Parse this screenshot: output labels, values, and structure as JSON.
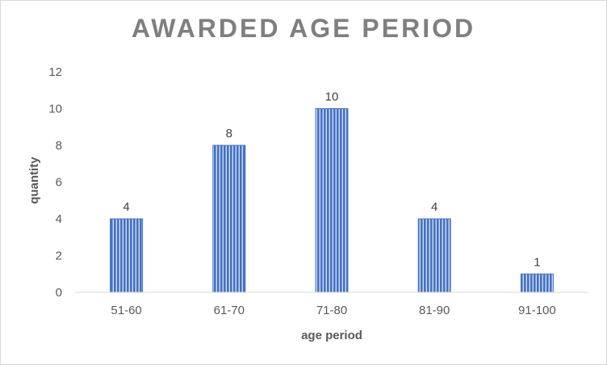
{
  "chart_data": {
    "type": "bar",
    "title": "AWARDED AGE PERIOD",
    "xlabel": "age period",
    "ylabel": "quantity",
    "categories": [
      "51-60",
      "61-70",
      "71-80",
      "81-90",
      "91-100"
    ],
    "values": [
      4,
      8,
      10,
      4,
      1
    ],
    "ylim": [
      0,
      12
    ],
    "yticks": [
      0,
      2,
      4,
      6,
      8,
      10,
      12
    ],
    "grid": false,
    "legend": "none",
    "data_labels": true,
    "colors": {
      "bar_fill": "#4472c4",
      "bar_stripe": "#ffffff",
      "title": "#7f7f7f",
      "text": "#595959",
      "axis_line": "#d9d9d9"
    }
  }
}
